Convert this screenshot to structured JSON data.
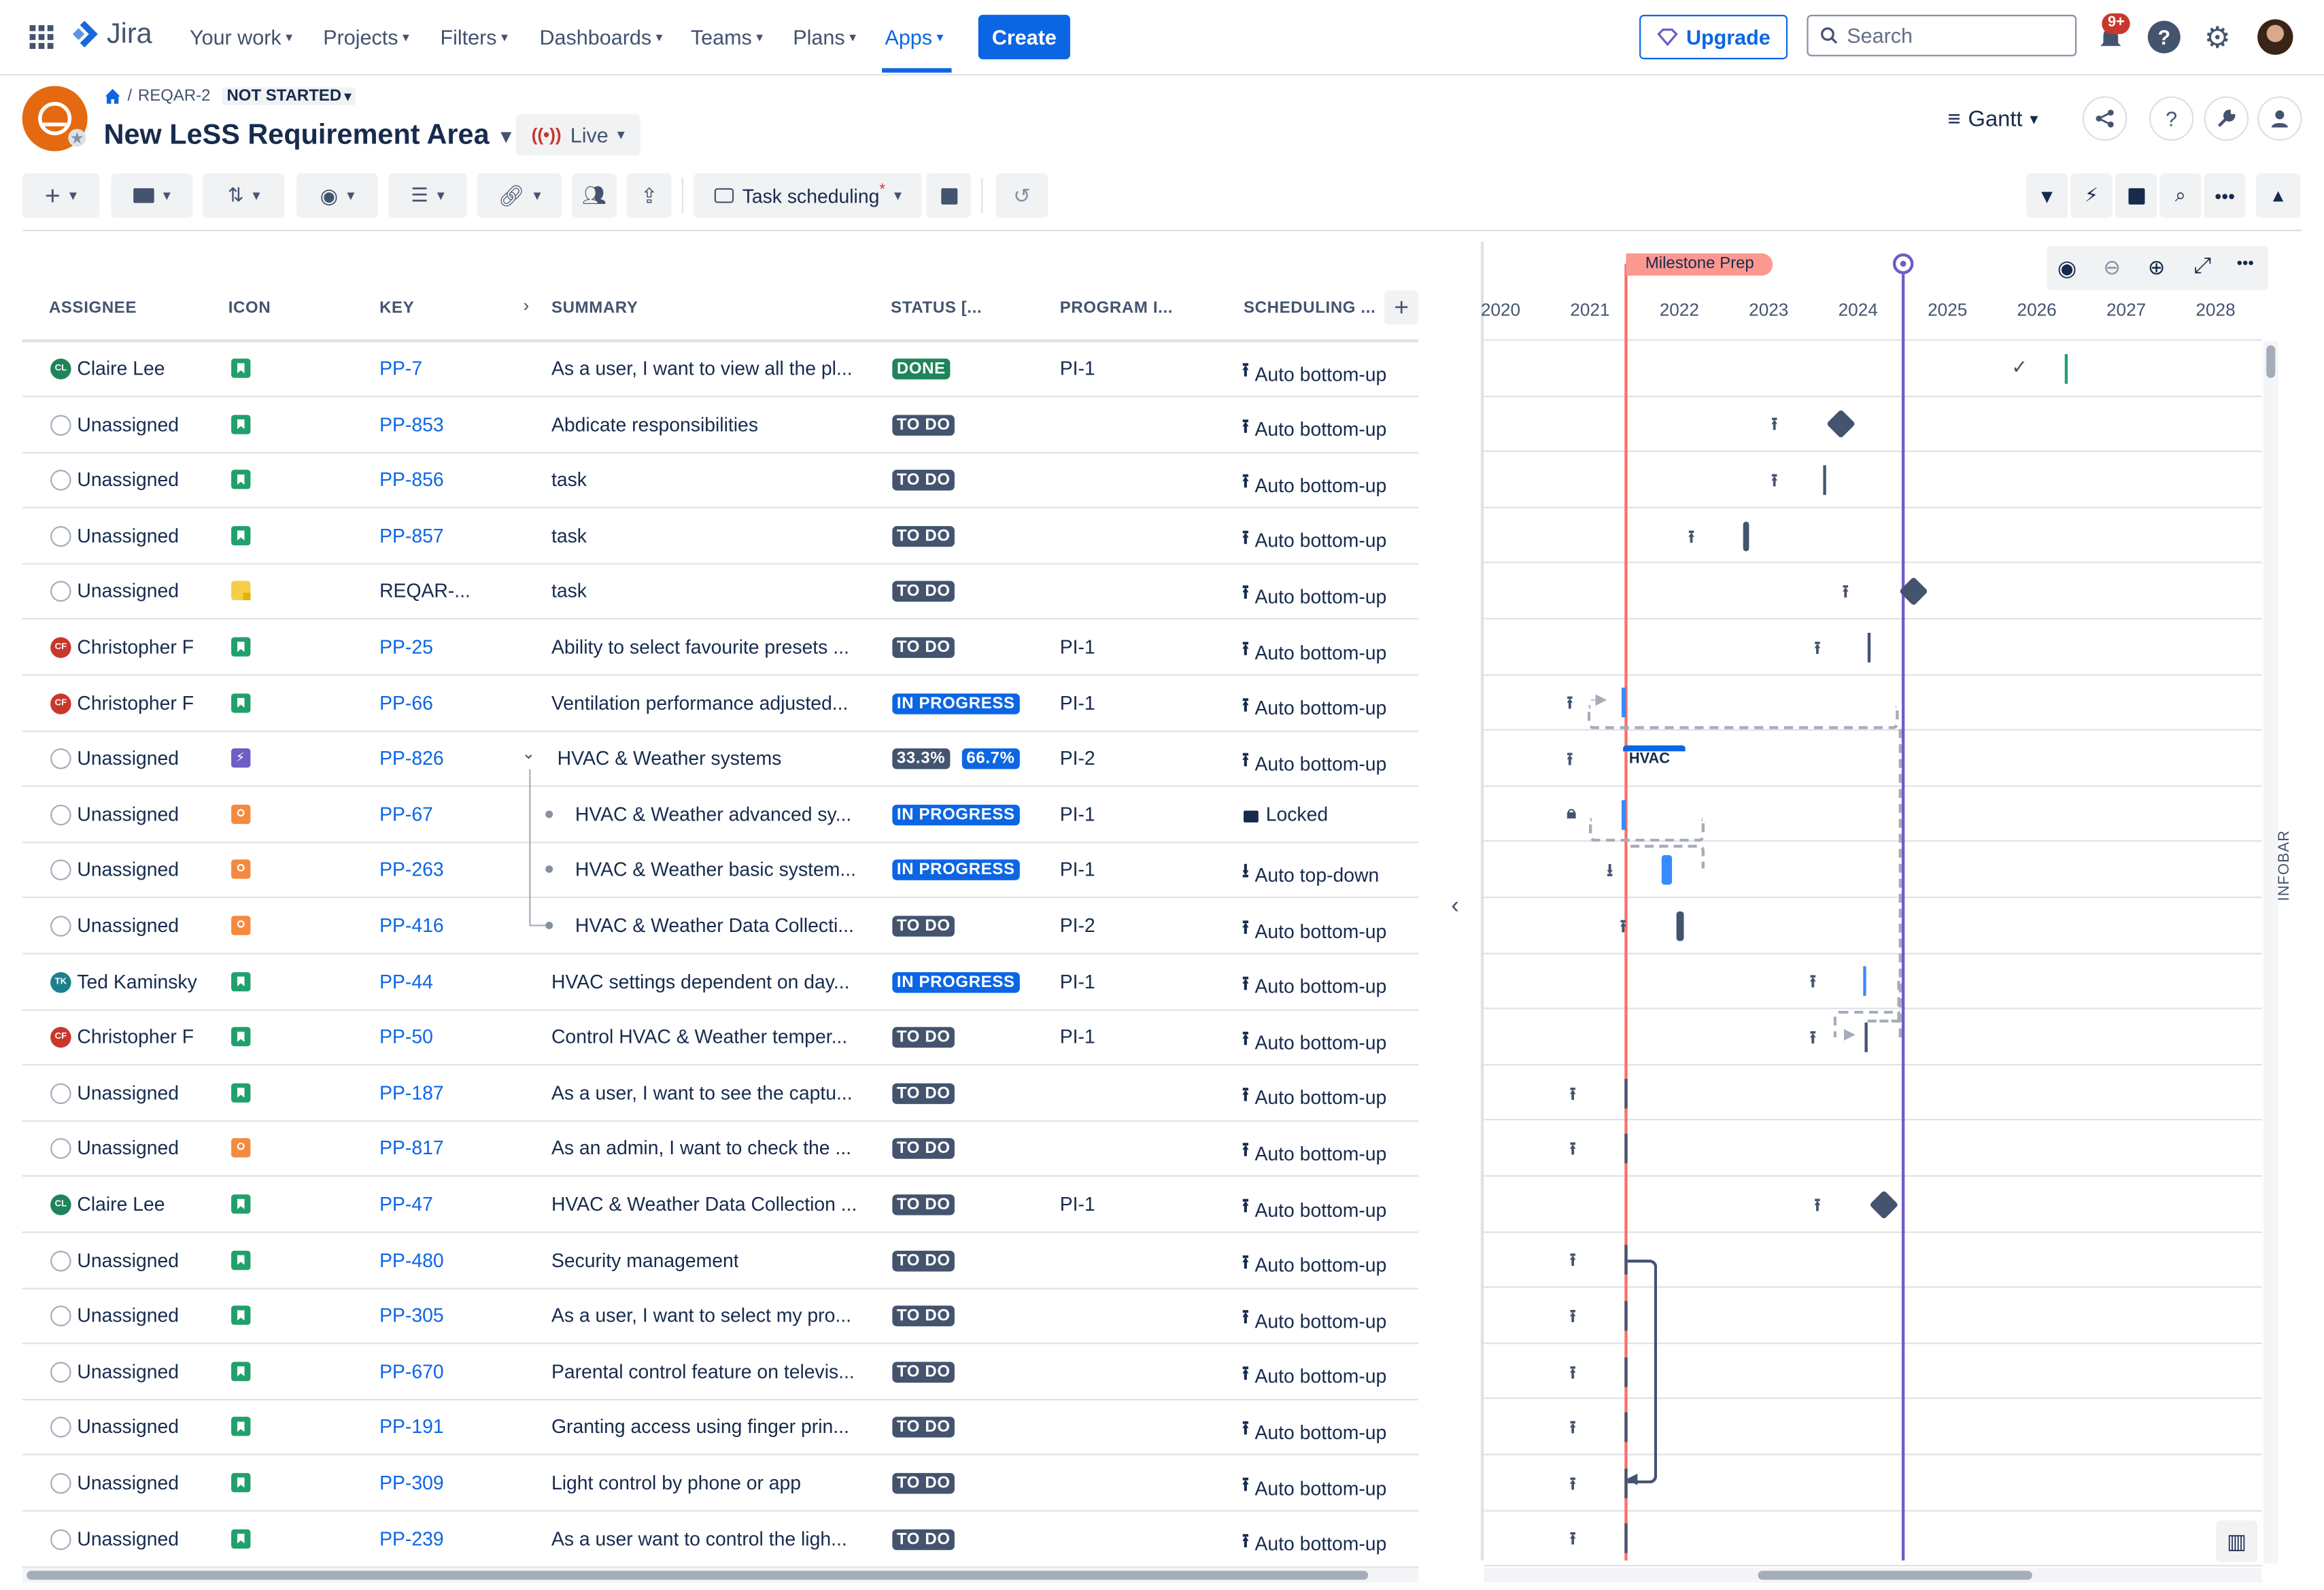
{
  "nav": {
    "logo": "Jira",
    "items": [
      "Your work",
      "Projects",
      "Filters",
      "Dashboards",
      "Teams",
      "Plans",
      "Apps"
    ],
    "create": "Create",
    "upgrade": "Upgrade",
    "search_placeholder": "Search",
    "notif_badge": "9+"
  },
  "header": {
    "breadcrumb_key": "REQAR-2",
    "status": "NOT STARTED",
    "title": "New LeSS Requirement Area",
    "live_label": "Live",
    "view_label": "Gantt"
  },
  "toolbar": {
    "scheduling_label": "Task scheduling",
    "scheduling_marker": "*"
  },
  "columns": [
    "ASSIGNEE",
    "ICON",
    "KEY",
    "SUMMARY",
    "STATUS [...",
    "PROGRAM I...",
    "SCHEDULING ..."
  ],
  "rows": [
    {
      "assignee": "Claire Lee",
      "initials": "CL",
      "avcolor": "#1f845a",
      "icon_color": "#22a06b",
      "key": "PP-7",
      "summary": "As a user, I want to view all the pl...",
      "status": "DONE",
      "status_type": "done",
      "program": "PI-1",
      "scheduling": "Auto bottom-up",
      "sched_type": "up"
    },
    {
      "assignee": "Unassigned",
      "initials": "",
      "avcolor": "",
      "icon_color": "#22a06b",
      "key": "PP-853",
      "summary": "Abdicate responsibilities",
      "status": "TO DO",
      "status_type": "todo",
      "program": "",
      "scheduling": "Auto bottom-up",
      "sched_type": "up"
    },
    {
      "assignee": "Unassigned",
      "initials": "",
      "avcolor": "",
      "icon_color": "#22a06b",
      "key": "PP-856",
      "summary": "task",
      "status": "TO DO",
      "status_type": "todo",
      "program": "",
      "scheduling": "Auto bottom-up",
      "sched_type": "up"
    },
    {
      "assignee": "Unassigned",
      "initials": "",
      "avcolor": "",
      "icon_color": "#22a06b",
      "key": "PP-857",
      "summary": "task",
      "status": "TO DO",
      "status_type": "todo",
      "program": "",
      "scheduling": "Auto bottom-up",
      "sched_type": "up"
    },
    {
      "assignee": "Unassigned",
      "initials": "",
      "avcolor": "",
      "icon_color": "#f5cd47",
      "key": "REQAR-...",
      "summary": "task",
      "status": "TO DO",
      "status_type": "todo",
      "program": "",
      "scheduling": "Auto bottom-up",
      "sched_type": "up",
      "plain_key": true
    },
    {
      "assignee": "Christopher F",
      "initials": "CF",
      "avcolor": "#c9372c",
      "icon_color": "#22a06b",
      "key": "PP-25",
      "summary": "Ability to select favourite presets ...",
      "status": "TO DO",
      "status_type": "todo",
      "program": "PI-1",
      "scheduling": "Auto bottom-up",
      "sched_type": "up"
    },
    {
      "assignee": "Christopher F",
      "initials": "CF",
      "avcolor": "#c9372c",
      "icon_color": "#22a06b",
      "key": "PP-66",
      "summary": "Ventilation performance adjusted...",
      "status": "IN PROGRESS",
      "status_type": "prog",
      "program": "PI-1",
      "scheduling": "Auto bottom-up",
      "sched_type": "up"
    },
    {
      "assignee": "Unassigned",
      "initials": "",
      "avcolor": "",
      "icon_color": "#6e5dc6",
      "key": "PP-826",
      "summary": "HVAC & Weather systems",
      "status": "",
      "status_type": "split",
      "split": [
        "33.3%",
        "66.7%"
      ],
      "program": "PI-2",
      "scheduling": "Auto bottom-up",
      "sched_type": "up",
      "parent": true
    },
    {
      "assignee": "Unassigned",
      "initials": "",
      "avcolor": "",
      "icon_color": "#f38a3f",
      "key": "PP-67",
      "summary": "HVAC & Weather advanced sy...",
      "status": "IN PROGRESS",
      "status_type": "prog",
      "program": "PI-1",
      "scheduling": "Locked",
      "sched_type": "lock",
      "child": true
    },
    {
      "assignee": "Unassigned",
      "initials": "",
      "avcolor": "",
      "icon_color": "#f38a3f",
      "key": "PP-263",
      "summary": "HVAC & Weather basic system...",
      "status": "IN PROGRESS",
      "status_type": "prog",
      "program": "PI-1",
      "scheduling": "Auto top-down",
      "sched_type": "down",
      "child": true
    },
    {
      "assignee": "Unassigned",
      "initials": "",
      "avcolor": "",
      "icon_color": "#f38a3f",
      "key": "PP-416",
      "summary": "HVAC & Weather Data Collecti...",
      "status": "TO DO",
      "status_type": "todo",
      "program": "PI-2",
      "scheduling": "Auto bottom-up",
      "sched_type": "up",
      "child": true,
      "last_child": true
    },
    {
      "assignee": "Ted Kaminsky",
      "initials": "TK",
      "avcolor": "#1d7f8c",
      "icon_color": "#22a06b",
      "key": "PP-44",
      "summary": "HVAC settings dependent on day...",
      "status": "IN PROGRESS",
      "status_type": "prog",
      "program": "PI-1",
      "scheduling": "Auto bottom-up",
      "sched_type": "up"
    },
    {
      "assignee": "Christopher F",
      "initials": "CF",
      "avcolor": "#c9372c",
      "icon_color": "#22a06b",
      "key": "PP-50",
      "summary": "Control HVAC & Weather temper...",
      "status": "TO DO",
      "status_type": "todo",
      "program": "PI-1",
      "scheduling": "Auto bottom-up",
      "sched_type": "up"
    },
    {
      "assignee": "Unassigned",
      "initials": "",
      "avcolor": "",
      "icon_color": "#22a06b",
      "key": "PP-187",
      "summary": "As a user, I want to see the captu...",
      "status": "TO DO",
      "status_type": "todo",
      "program": "",
      "scheduling": "Auto bottom-up",
      "sched_type": "up"
    },
    {
      "assignee": "Unassigned",
      "initials": "",
      "avcolor": "",
      "icon_color": "#f38a3f",
      "key": "PP-817",
      "summary": "As an admin, I want to check the ...",
      "status": "TO DO",
      "status_type": "todo",
      "program": "",
      "scheduling": "Auto bottom-up",
      "sched_type": "up"
    },
    {
      "assignee": "Claire Lee",
      "initials": "CL",
      "avcolor": "#1f845a",
      "icon_color": "#22a06b",
      "key": "PP-47",
      "summary": "HVAC & Weather Data Collection ...",
      "status": "TO DO",
      "status_type": "todo",
      "program": "PI-1",
      "scheduling": "Auto bottom-up",
      "sched_type": "up"
    },
    {
      "assignee": "Unassigned",
      "initials": "",
      "avcolor": "",
      "icon_color": "#22a06b",
      "key": "PP-480",
      "summary": "Security management",
      "status": "TO DO",
      "status_type": "todo",
      "program": "",
      "scheduling": "Auto bottom-up",
      "sched_type": "up"
    },
    {
      "assignee": "Unassigned",
      "initials": "",
      "avcolor": "",
      "icon_color": "#22a06b",
      "key": "PP-305",
      "summary": "As a user, I want to select my pro...",
      "status": "TO DO",
      "status_type": "todo",
      "program": "",
      "scheduling": "Auto bottom-up",
      "sched_type": "up"
    },
    {
      "assignee": "Unassigned",
      "initials": "",
      "avcolor": "",
      "icon_color": "#22a06b",
      "key": "PP-670",
      "summary": "Parental control feature on televis...",
      "status": "TO DO",
      "status_type": "todo",
      "program": "",
      "scheduling": "Auto bottom-up",
      "sched_type": "up"
    },
    {
      "assignee": "Unassigned",
      "initials": "",
      "avcolor": "",
      "icon_color": "#22a06b",
      "key": "PP-191",
      "summary": "Granting access using finger prin...",
      "status": "TO DO",
      "status_type": "todo",
      "program": "",
      "scheduling": "Auto bottom-up",
      "sched_type": "up"
    },
    {
      "assignee": "Unassigned",
      "initials": "",
      "avcolor": "",
      "icon_color": "#22a06b",
      "key": "PP-309",
      "summary": "Light control by phone or app",
      "status": "TO DO",
      "status_type": "todo",
      "program": "",
      "scheduling": "Auto bottom-up",
      "sched_type": "up"
    },
    {
      "assignee": "Unassigned",
      "initials": "",
      "avcolor": "",
      "icon_color": "#22a06b",
      "key": "PP-239",
      "summary": "As a user want to control the ligh...",
      "status": "TO DO",
      "status_type": "todo",
      "program": "",
      "scheduling": "Auto bottom-up",
      "sched_type": "up"
    }
  ],
  "gantt": {
    "years": [
      "2020",
      "2021",
      "2022",
      "2023",
      "2024",
      "2025",
      "2026",
      "2027",
      "2028"
    ],
    "milestone_label": "Milestone Prep",
    "hvac_label": "HVAC",
    "infobar_label": "INFOBAR"
  }
}
